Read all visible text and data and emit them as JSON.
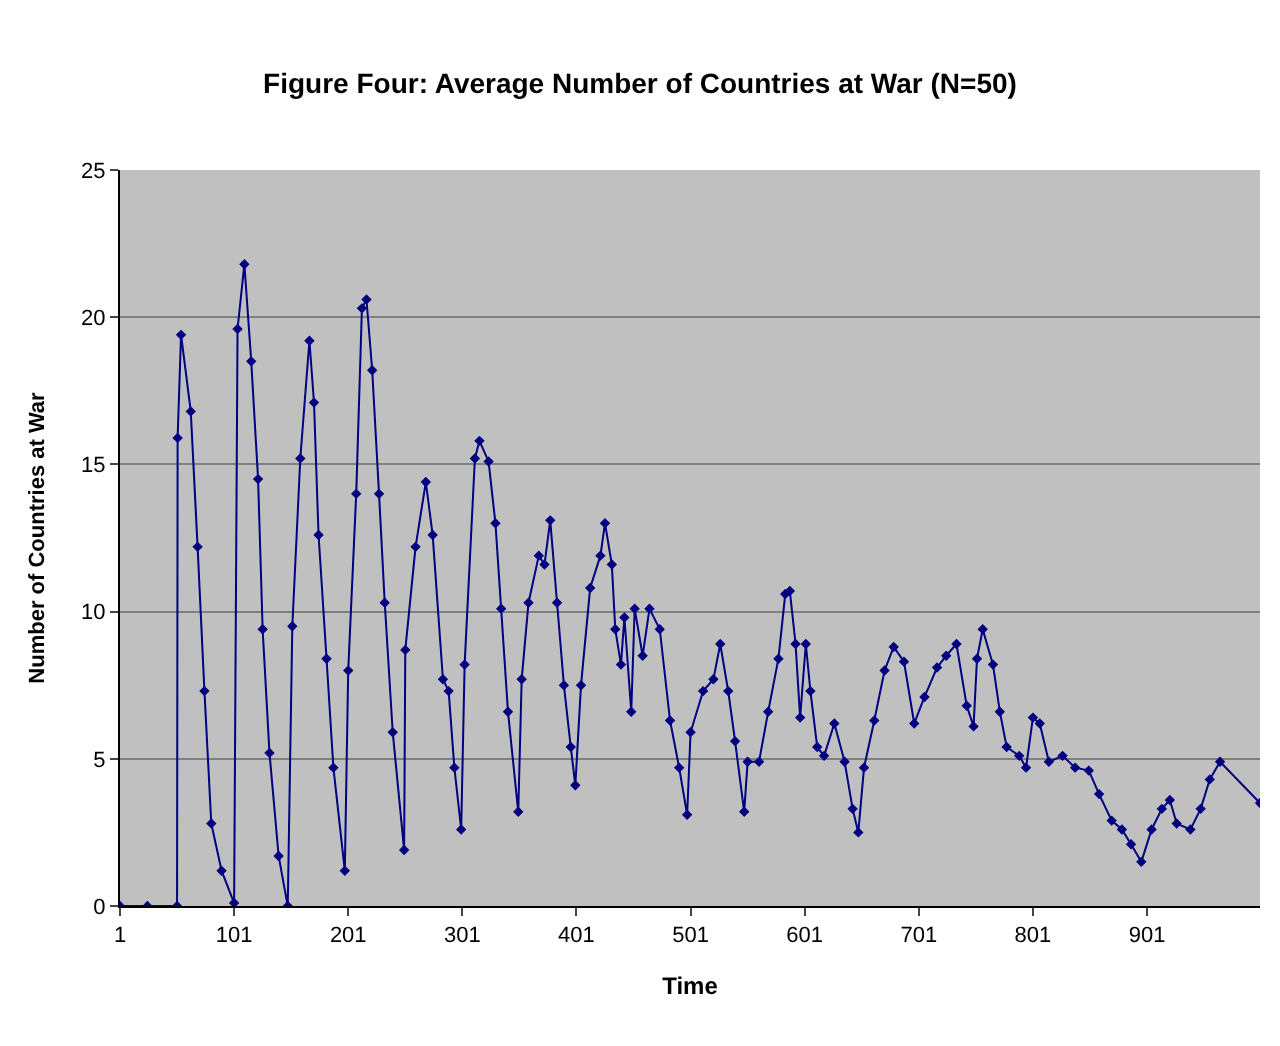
{
  "chart_data": {
    "type": "line",
    "title": "Figure Four: Average Number of Countries at War (N=50)",
    "xlabel": "Time",
    "ylabel": "Number of Countries at War",
    "xlim": [
      1,
      1000
    ],
    "xticks": [
      1,
      101,
      201,
      301,
      401,
      501,
      601,
      701,
      801,
      901
    ],
    "ylim": [
      0,
      25
    ],
    "yticks": [
      0,
      5,
      10,
      15,
      20,
      25
    ],
    "grid": "y",
    "marker": "diamond",
    "line_style": "solid",
    "x": [
      1,
      25,
      51,
      51.5,
      54.5,
      63,
      69,
      75,
      81,
      90,
      101,
      104,
      110,
      116,
      122,
      126,
      132,
      140,
      148,
      152,
      159,
      167,
      171,
      175,
      182,
      188,
      198,
      201,
      208,
      213,
      217,
      222,
      228,
      233,
      240,
      250,
      251,
      260,
      269,
      275,
      284,
      289,
      294,
      300,
      303,
      312,
      316,
      324,
      330,
      335,
      341,
      350,
      353,
      359,
      368,
      373,
      378,
      384,
      390,
      396,
      400,
      405,
      413,
      422,
      426,
      432,
      435,
      440,
      443,
      449,
      452,
      459,
      465,
      474,
      483,
      491,
      498,
      501,
      512,
      521,
      527,
      534,
      540,
      548,
      551,
      561,
      569,
      578,
      584,
      588,
      593,
      597,
      602,
      606,
      612,
      618,
      627,
      636,
      643,
      648,
      653,
      662,
      671,
      679,
      688,
      697,
      706,
      717,
      725,
      734,
      743,
      749,
      752,
      757,
      766,
      772,
      778,
      789,
      795,
      801,
      807,
      815,
      827,
      838,
      850,
      859,
      870,
      879,
      887,
      896,
      905,
      914,
      921,
      927,
      939,
      948,
      956,
      965,
      1000
    ],
    "series": [
      {
        "color": "#000080",
        "values": [
          0,
          0,
          0,
          15.9,
          19.4,
          16.8,
          12.2,
          7.3,
          2.8,
          1.2,
          0.1,
          19.6,
          21.8,
          18.5,
          14.5,
          9.4,
          5.2,
          1.7,
          0,
          9.5,
          15.2,
          19.2,
          17.1,
          12.6,
          8.4,
          4.7,
          1.2,
          8.0,
          14.0,
          20.3,
          20.6,
          18.2,
          14.0,
          10.3,
          5.9,
          1.9,
          8.7,
          12.2,
          14.4,
          12.6,
          7.7,
          7.3,
          4.7,
          2.6,
          8.2,
          15.2,
          15.8,
          15.1,
          13.0,
          10.1,
          6.6,
          3.2,
          7.7,
          10.3,
          11.9,
          11.6,
          13.1,
          10.3,
          7.5,
          5.4,
          4.1,
          7.5,
          10.8,
          11.9,
          13.0,
          11.6,
          9.4,
          8.2,
          9.8,
          6.6,
          10.1,
          8.5,
          10.1,
          9.4,
          6.3,
          4.7,
          3.1,
          5.9,
          7.3,
          7.7,
          8.9,
          7.3,
          5.6,
          3.2,
          4.9,
          4.9,
          6.6,
          8.4,
          10.6,
          10.7,
          8.9,
          6.4,
          8.9,
          7.3,
          5.4,
          5.1,
          6.2,
          4.9,
          3.3,
          2.5,
          4.7,
          6.3,
          8.0,
          8.8,
          8.3,
          6.2,
          7.1,
          8.1,
          8.5,
          8.9,
          6.8,
          6.1,
          8.4,
          9.4,
          8.2,
          6.6,
          5.4,
          5.1,
          4.7,
          6.4,
          6.2,
          4.9,
          5.1,
          4.7,
          4.6,
          3.8,
          2.9,
          2.6,
          2.1,
          1.5,
          2.6,
          3.3,
          3.6,
          2.8,
          2.6,
          3.3,
          4.3,
          4.9,
          3.5
        ]
      }
    ]
  }
}
